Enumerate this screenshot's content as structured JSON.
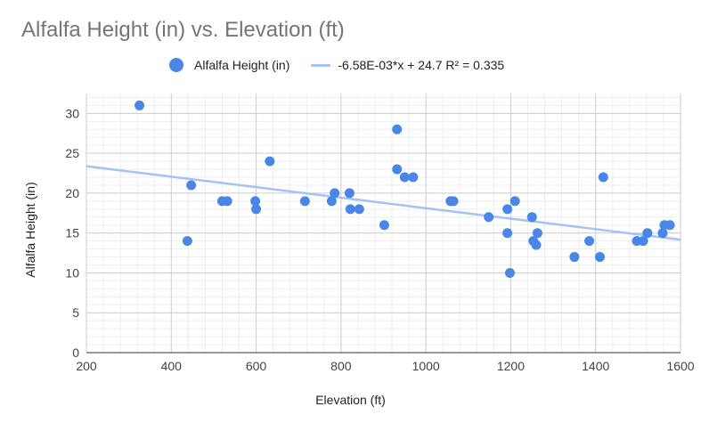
{
  "chart_data": {
    "type": "scatter",
    "title": "Alfalfa Height (in) vs. Elevation (ft)",
    "xlabel": "Elevation (ft)",
    "ylabel": "Alfalfa Height (in)",
    "xlim": [
      200,
      1600
    ],
    "ylim": [
      0,
      32.5
    ],
    "x_ticks": [
      "200",
      "400",
      "600",
      "800",
      "1000",
      "1200",
      "1400",
      "1600"
    ],
    "y_ticks": [
      "0",
      "5",
      "10",
      "15",
      "20",
      "25",
      "30"
    ],
    "grid": true,
    "legend_position": "top",
    "series": [
      {
        "name": "Alfalfa Height (in)",
        "color": "#4a86e8",
        "points": [
          [
            325,
            31
          ],
          [
            438,
            14
          ],
          [
            447,
            21
          ],
          [
            520,
            19
          ],
          [
            532,
            19
          ],
          [
            598,
            19
          ],
          [
            600,
            18
          ],
          [
            632,
            24
          ],
          [
            715,
            19
          ],
          [
            778,
            19
          ],
          [
            785,
            20
          ],
          [
            820,
            20
          ],
          [
            822,
            18
          ],
          [
            843,
            18
          ],
          [
            902,
            16
          ],
          [
            932,
            28
          ],
          [
            932,
            23
          ],
          [
            950,
            22
          ],
          [
            970,
            22
          ],
          [
            1058,
            19
          ],
          [
            1065,
            19
          ],
          [
            1148,
            17
          ],
          [
            1192,
            18
          ],
          [
            1192,
            15
          ],
          [
            1198,
            10
          ],
          [
            1210,
            19
          ],
          [
            1250,
            17
          ],
          [
            1253,
            14
          ],
          [
            1260,
            13.5
          ],
          [
            1263,
            15
          ],
          [
            1350,
            12
          ],
          [
            1385,
            14
          ],
          [
            1410,
            12
          ],
          [
            1418,
            22
          ],
          [
            1497,
            14
          ],
          [
            1512,
            14
          ],
          [
            1522,
            15
          ],
          [
            1558,
            15
          ],
          [
            1562,
            16
          ],
          [
            1575,
            16
          ]
        ]
      }
    ],
    "trendline": {
      "label": "-6.58E-03*x + 24.7 R² = 0.335",
      "slope": -0.00658,
      "intercept": 24.7,
      "color": "#a4c2f4"
    }
  }
}
